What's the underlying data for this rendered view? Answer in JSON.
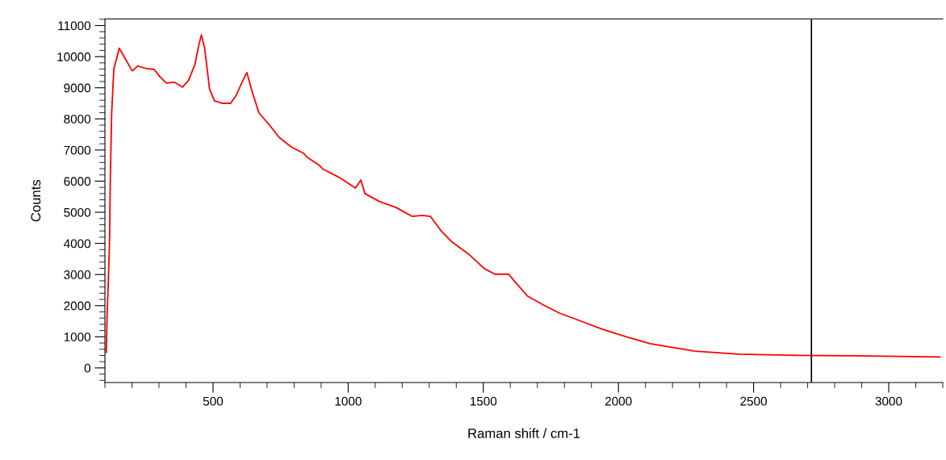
{
  "chart_data": {
    "type": "line",
    "xlabel": "Raman shift / cm-1",
    "ylabel": "Counts",
    "x": [
      105,
      108,
      112,
      117,
      120,
      125,
      133,
      153,
      201,
      222,
      252,
      282,
      303,
      327,
      357,
      387,
      409,
      433,
      448,
      457,
      469,
      487,
      505,
      535,
      565,
      586,
      610,
      625,
      646,
      670,
      709,
      744,
      789,
      834,
      848,
      893,
      908,
      967,
      1027,
      1047,
      1062,
      1117,
      1176,
      1236,
      1275,
      1304,
      1346,
      1385,
      1445,
      1504,
      1543,
      1594,
      1614,
      1663,
      1723,
      1782,
      1862,
      1942,
      2032,
      2118,
      2283,
      2446,
      2663,
      2880,
      3190
    ],
    "series": [
      {
        "color": "#ff0000",
        "values": [
          500,
          1700,
          2600,
          4000,
          6100,
          8200,
          9600,
          10270,
          9540,
          9700,
          9620,
          9590,
          9360,
          9150,
          9180,
          9020,
          9230,
          9750,
          10400,
          10700,
          10270,
          8970,
          8580,
          8500,
          8500,
          8760,
          9230,
          9490,
          8840,
          8190,
          7800,
          7410,
          7100,
          6900,
          6770,
          6510,
          6380,
          6120,
          5780,
          6040,
          5600,
          5340,
          5160,
          4870,
          4900,
          4870,
          4380,
          4040,
          3660,
          3190,
          3010,
          3010,
          2800,
          2310,
          2020,
          1760,
          1500,
          1240,
          990,
          780,
          540,
          440,
          400,
          390,
          350
        ]
      }
    ],
    "xlim": [
      100,
      3200
    ],
    "ylim": [
      -470,
      11210
    ],
    "xticks": [
      500,
      1000,
      1500,
      2000,
      2500,
      3000
    ],
    "yticks": [
      0,
      1000,
      2000,
      3000,
      4000,
      5000,
      6000,
      7000,
      8000,
      9000,
      10000,
      11000
    ],
    "ref_lines": [
      {
        "axis": "x",
        "value": 2714,
        "color": "#000000"
      }
    ],
    "grid": false
  }
}
